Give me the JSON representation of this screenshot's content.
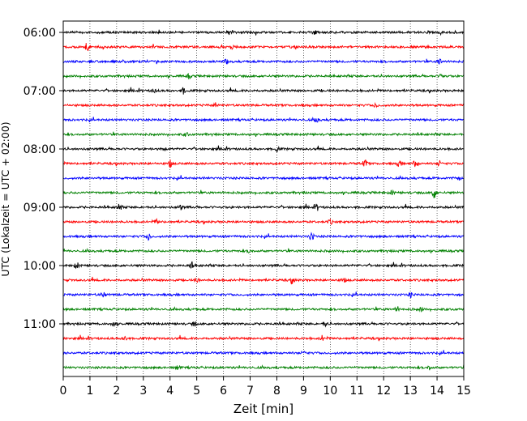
{
  "chart_data": {
    "type": "line",
    "title": "",
    "xlabel": "Zeit  [min]",
    "ylabel": "UTC (Lokalzeit = UTC + 02:00)",
    "xlim": [
      0,
      15
    ],
    "x_ticks": [
      0,
      1,
      2,
      3,
      4,
      5,
      6,
      7,
      8,
      9,
      10,
      11,
      12,
      13,
      14,
      15
    ],
    "x_tick_labels": [
      "0",
      "1",
      "2",
      "3",
      "4",
      "5",
      "6",
      "7",
      "8",
      "9",
      "10",
      "11",
      "12",
      "13",
      "14",
      "15"
    ],
    "y_tick_labels": [
      {
        "label": "06:00",
        "time": "06:00"
      },
      {
        "label": "07:00",
        "time": "07:00"
      },
      {
        "label": "08:00",
        "time": "08:00"
      },
      {
        "label": "09:00",
        "time": "09:00"
      },
      {
        "label": "10:00",
        "time": "10:00"
      },
      {
        "label": "11:00",
        "time": "11:00"
      }
    ],
    "grid": "vertical-dotted",
    "legend": "none",
    "series_colors": [
      "#000000",
      "#ff0000",
      "#0000ff",
      "#008000"
    ],
    "series": [
      {
        "start": "06:00",
        "color": "#000000",
        "events": [
          {
            "t": 6.2,
            "amp": 1.2
          },
          {
            "t": 9.4,
            "amp": 1.0
          }
        ]
      },
      {
        "start": "06:15",
        "color": "#ff0000",
        "events": [
          {
            "t": 0.9,
            "amp": 2.5
          },
          {
            "t": 6.3,
            "amp": 1.0
          }
        ]
      },
      {
        "start": "06:30",
        "color": "#0000ff",
        "events": [
          {
            "t": 6.1,
            "amp": 1.2
          },
          {
            "t": 14.1,
            "amp": 1.5
          }
        ]
      },
      {
        "start": "06:45",
        "color": "#008000",
        "events": [
          {
            "t": 4.7,
            "amp": 1.0
          },
          {
            "t": 14.2,
            "amp": 1.5
          }
        ]
      },
      {
        "start": "07:00",
        "color": "#000000",
        "events": [
          {
            "t": 3.4,
            "amp": 1.0
          },
          {
            "t": 4.5,
            "amp": 1.4
          }
        ]
      },
      {
        "start": "07:15",
        "color": "#ff0000",
        "events": [
          {
            "t": 5.7,
            "amp": 1.0
          },
          {
            "t": 11.7,
            "amp": 1.0
          }
        ]
      },
      {
        "start": "07:30",
        "color": "#0000ff",
        "events": [
          {
            "t": 9.5,
            "amp": 1.3
          }
        ]
      },
      {
        "start": "07:45",
        "color": "#008000",
        "events": [
          {
            "t": 4.6,
            "amp": 1.0
          }
        ]
      },
      {
        "start": "08:00",
        "color": "#000000",
        "events": [
          {
            "t": 3.8,
            "amp": 1.0
          },
          {
            "t": 8.0,
            "amp": 1.0
          }
        ]
      },
      {
        "start": "08:15",
        "color": "#ff0000",
        "events": [
          {
            "t": 4.0,
            "amp": 1.6
          },
          {
            "t": 11.3,
            "amp": 1.8
          },
          {
            "t": 12.6,
            "amp": 1.6
          },
          {
            "t": 13.2,
            "amp": 2.0
          },
          {
            "t": 14.1,
            "amp": 1.4
          }
        ]
      },
      {
        "start": "08:30",
        "color": "#0000ff",
        "events": [
          {
            "t": 14.8,
            "amp": 1.0
          }
        ]
      },
      {
        "start": "08:45",
        "color": "#008000",
        "events": [
          {
            "t": 12.3,
            "amp": 1.0
          },
          {
            "t": 13.9,
            "amp": 3.0
          }
        ]
      },
      {
        "start": "09:00",
        "color": "#000000",
        "events": [
          {
            "t": 2.1,
            "amp": 1.6
          },
          {
            "t": 4.4,
            "amp": 1.2
          },
          {
            "t": 9.5,
            "amp": 1.5
          }
        ]
      },
      {
        "start": "09:15",
        "color": "#ff0000",
        "events": [
          {
            "t": 3.5,
            "amp": 1.0
          },
          {
            "t": 10.0,
            "amp": 1.0
          }
        ]
      },
      {
        "start": "09:30",
        "color": "#0000ff",
        "events": [
          {
            "t": 3.2,
            "amp": 1.7
          },
          {
            "t": 9.3,
            "amp": 1.8
          }
        ]
      },
      {
        "start": "09:45",
        "color": "#008000",
        "events": [
          {
            "t": 7.0,
            "amp": 1.0
          }
        ]
      },
      {
        "start": "10:00",
        "color": "#000000",
        "events": [
          {
            "t": 0.5,
            "amp": 1.6
          },
          {
            "t": 4.8,
            "amp": 1.5
          }
        ]
      },
      {
        "start": "10:15",
        "color": "#ff0000",
        "events": [
          {
            "t": 5.0,
            "amp": 1.0
          },
          {
            "t": 8.6,
            "amp": 1.6
          },
          {
            "t": 10.5,
            "amp": 1.0
          }
        ]
      },
      {
        "start": "10:30",
        "color": "#0000ff",
        "events": [
          {
            "t": 1.5,
            "amp": 1.4
          },
          {
            "t": 13.0,
            "amp": 1.0
          }
        ]
      },
      {
        "start": "10:45",
        "color": "#008000",
        "events": [
          {
            "t": 12.5,
            "amp": 1.3
          },
          {
            "t": 13.4,
            "amp": 1.0
          }
        ]
      },
      {
        "start": "11:00",
        "color": "#000000",
        "events": [
          {
            "t": 1.9,
            "amp": 1.4
          },
          {
            "t": 4.9,
            "amp": 1.0
          },
          {
            "t": 9.8,
            "amp": 1.3
          }
        ]
      },
      {
        "start": "11:15",
        "color": "#ff0000",
        "events": [
          {
            "t": 2.3,
            "amp": 1.4
          },
          {
            "t": 9.7,
            "amp": 1.3
          }
        ]
      },
      {
        "start": "11:30",
        "color": "#0000ff",
        "events": [
          {
            "t": 9.0,
            "amp": 1.0
          }
        ]
      },
      {
        "start": "11:45",
        "color": "#008000",
        "events": [
          {
            "t": 4.3,
            "amp": 1.0
          },
          {
            "t": 13.7,
            "amp": 1.0
          }
        ]
      }
    ]
  }
}
